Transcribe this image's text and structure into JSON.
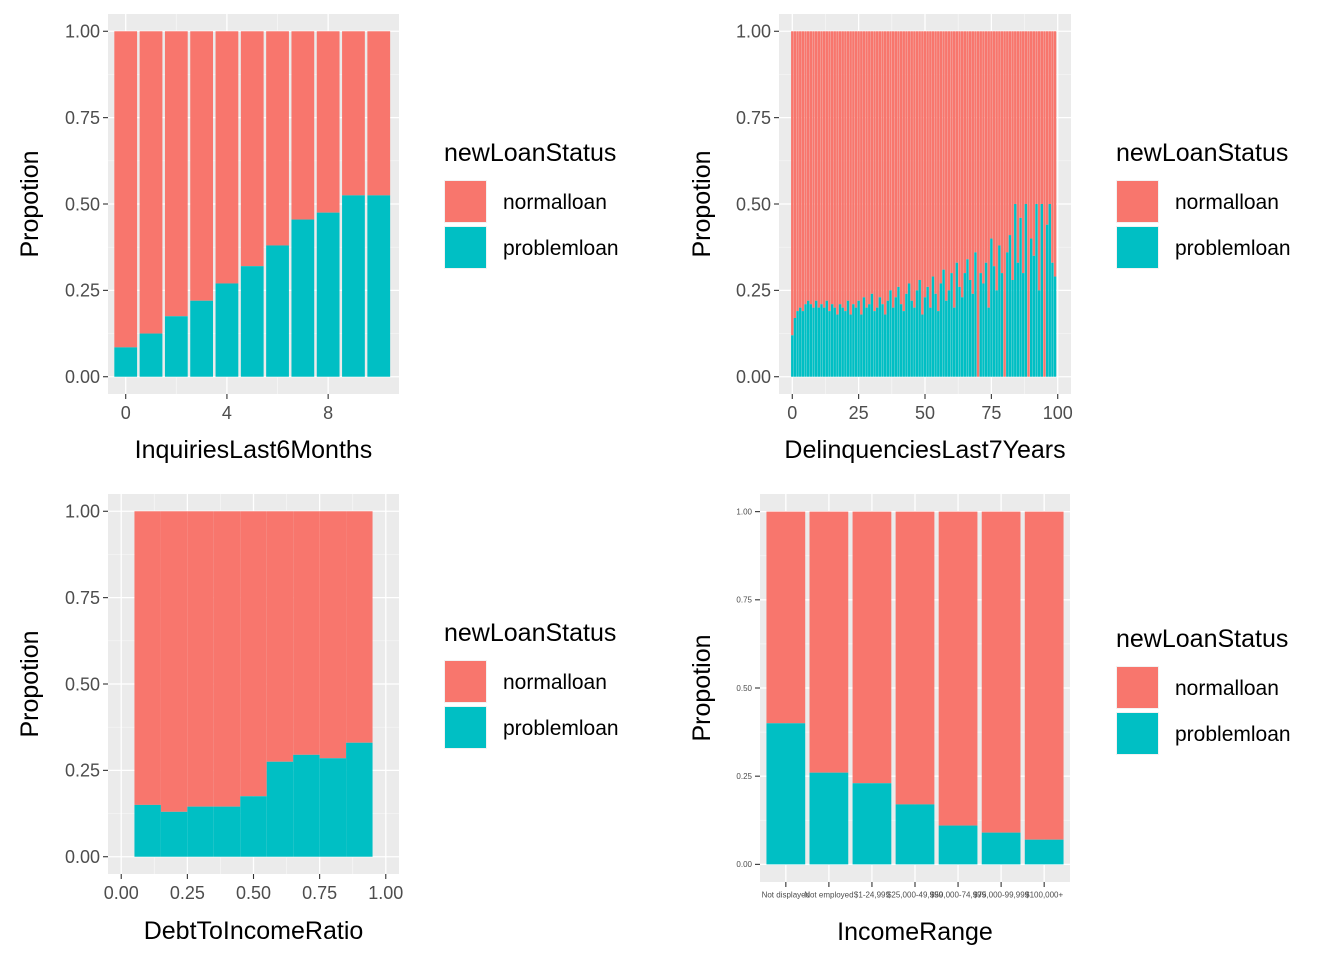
{
  "chart_data": [
    {
      "type": "bar",
      "id": "inquiries",
      "position": "stack-fill",
      "xlabel": "InquiriesLast6Months",
      "ylabel": "Propotion",
      "xlim": [
        -0.7,
        10.8
      ],
      "xticks": [
        0,
        4,
        8
      ],
      "ylim": [
        0,
        1
      ],
      "yticks": [
        "0.00",
        "0.25",
        "0.50",
        "0.75",
        "1.00"
      ],
      "bar_width": 0.9,
      "legend": {
        "title": "newLoanStatus",
        "entries": [
          "normalloan",
          "problemloan"
        ]
      },
      "colors": {
        "normalloan": "#F8766D",
        "problemloan": "#00BFC4"
      },
      "x": [
        0,
        1,
        2,
        3,
        4,
        5,
        6,
        7,
        8,
        9,
        10
      ],
      "problem_share": [
        0.085,
        0.125,
        0.175,
        0.22,
        0.27,
        0.32,
        0.38,
        0.455,
        0.475,
        0.525,
        0.525
      ]
    },
    {
      "type": "bar",
      "id": "delinquencies",
      "position": "stack-fill",
      "xlabel": "DelinquenciesLast7Years",
      "ylabel": "Propotion",
      "xlim": [
        -5,
        105
      ],
      "xticks": [
        0,
        25,
        50,
        75,
        100
      ],
      "ylim": [
        0,
        1
      ],
      "yticks": [
        "0.00",
        "0.25",
        "0.50",
        "0.75",
        "1.00"
      ],
      "bar_width": 0.9,
      "legend": {
        "title": "newLoanStatus",
        "entries": [
          "normalloan",
          "problemloan"
        ]
      },
      "colors": {
        "normalloan": "#F8766D",
        "problemloan": "#00BFC4"
      },
      "x": [
        0,
        1,
        2,
        3,
        4,
        5,
        6,
        7,
        8,
        9,
        10,
        11,
        12,
        13,
        14,
        15,
        16,
        17,
        18,
        19,
        20,
        21,
        22,
        23,
        24,
        25,
        26,
        27,
        28,
        29,
        30,
        31,
        32,
        33,
        34,
        35,
        36,
        37,
        38,
        39,
        40,
        41,
        42,
        43,
        44,
        45,
        46,
        47,
        48,
        49,
        50,
        51,
        52,
        53,
        54,
        55,
        56,
        57,
        58,
        59,
        60,
        61,
        62,
        63,
        64,
        65,
        66,
        67,
        68,
        69,
        70,
        71,
        72,
        73,
        74,
        75,
        76,
        77,
        78,
        79,
        80,
        81,
        82,
        83,
        84,
        85,
        86,
        87,
        88,
        89,
        90,
        91,
        92,
        93,
        94,
        95,
        96,
        97,
        98,
        99
      ],
      "problem_share": [
        0.12,
        0.17,
        0.19,
        0.2,
        0.19,
        0.21,
        0.22,
        0.21,
        0.2,
        0.22,
        0.2,
        0.21,
        0.2,
        0.22,
        0.19,
        0.21,
        0.2,
        0.18,
        0.21,
        0.2,
        0.19,
        0.22,
        0.18,
        0.21,
        0.2,
        0.22,
        0.18,
        0.23,
        0.2,
        0.21,
        0.24,
        0.19,
        0.2,
        0.23,
        0.21,
        0.18,
        0.22,
        0.25,
        0.2,
        0.23,
        0.26,
        0.21,
        0.19,
        0.24,
        0.27,
        0.22,
        0.2,
        0.25,
        0.28,
        0.18,
        0.23,
        0.26,
        0.2,
        0.29,
        0.24,
        0.19,
        0.27,
        0.31,
        0.22,
        0.25,
        0.3,
        0.2,
        0.33,
        0.26,
        0.23,
        0.3,
        0.34,
        0.28,
        0.24,
        0.36,
        0.0,
        0.3,
        0.27,
        0.33,
        0.2,
        0.4,
        0.32,
        0.25,
        0.38,
        0.3,
        0.0,
        0.36,
        0.41,
        0.28,
        0.5,
        0.33,
        0.46,
        0.3,
        0.5,
        0.0,
        0.4,
        0.35,
        0.5,
        0.25,
        0.5,
        0.0,
        0.44,
        0.5,
        0.33,
        0.29
      ]
    },
    {
      "type": "bar",
      "id": "debt-ratio",
      "position": "stack-fill",
      "xlabel": "DebtToIncomeRatio",
      "ylabel": "Propotion",
      "xlim": [
        -0.05,
        1.05
      ],
      "xticks": [
        "0.00",
        "0.25",
        "0.50",
        "0.75",
        "1.00"
      ],
      "ylim": [
        0,
        1
      ],
      "yticks": [
        "0.00",
        "0.25",
        "0.50",
        "0.75",
        "1.00"
      ],
      "bar_width": 0.1,
      "legend": {
        "title": "newLoanStatus",
        "entries": [
          "normalloan",
          "problemloan"
        ]
      },
      "colors": {
        "normalloan": "#F8766D",
        "problemloan": "#00BFC4"
      },
      "x": [
        0.1,
        0.2,
        0.3,
        0.4,
        0.5,
        0.6,
        0.7,
        0.8,
        0.9
      ],
      "problem_share": [
        0.15,
        0.13,
        0.145,
        0.145,
        0.175,
        0.275,
        0.295,
        0.285,
        0.33
      ]
    },
    {
      "type": "bar",
      "id": "income-range",
      "position": "stack-fill",
      "xlabel": "IncomeRange",
      "ylabel": "Propotion",
      "ylim": [
        0,
        1
      ],
      "yticks": [
        "0.00",
        "0.25",
        "0.50",
        "0.75",
        "1.00"
      ],
      "bar_width": 0.9,
      "legend": {
        "title": "newLoanStatus",
        "entries": [
          "normalloan",
          "problemloan"
        ]
      },
      "colors": {
        "normalloan": "#F8766D",
        "problemloan": "#00BFC4"
      },
      "categories": [
        "Not displayed",
        "Not employed",
        "$1-24,999",
        "$25,000-49,999",
        "$50,000-74,999",
        "$75,000-99,999",
        "$100,000+"
      ],
      "problem_share": [
        0.4,
        0.26,
        0.23,
        0.17,
        0.11,
        0.09,
        0.07
      ]
    }
  ]
}
